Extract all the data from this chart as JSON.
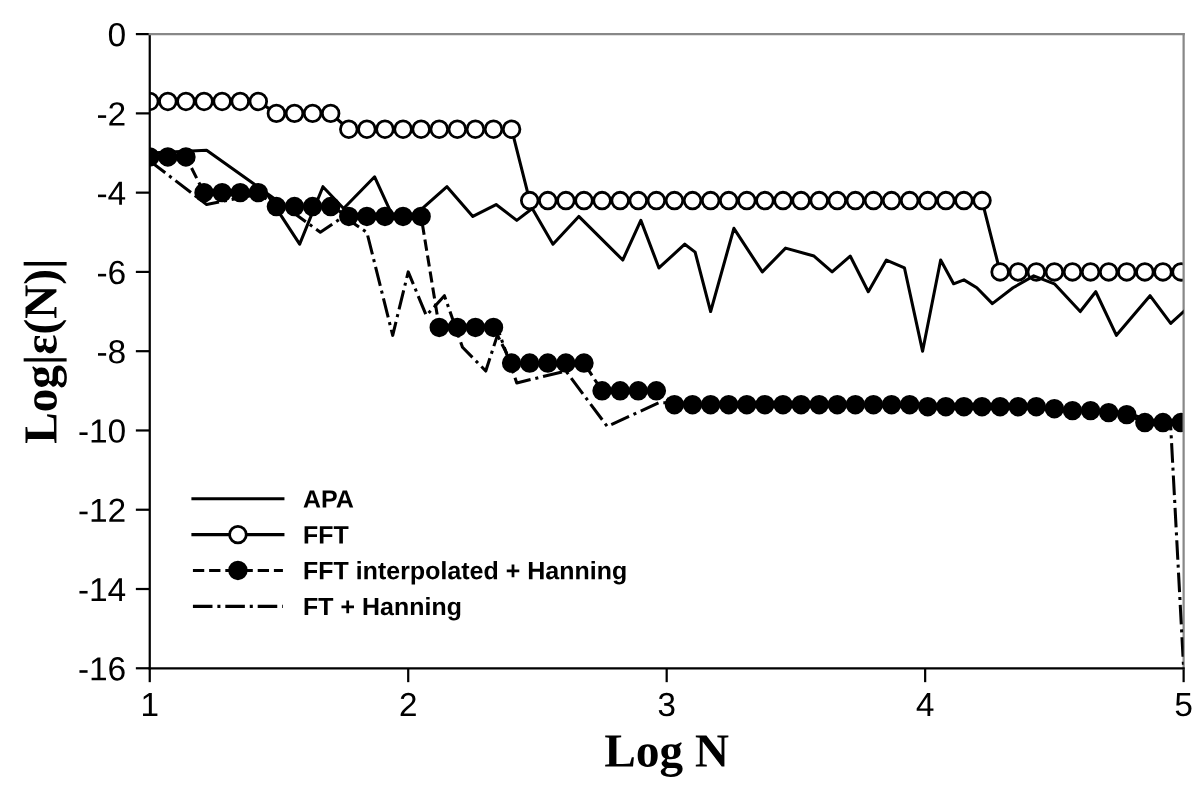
{
  "chart_data": {
    "type": "line",
    "xlabel": "Log N",
    "ylabel": "Log|ε(N)|",
    "xlim": [
      1,
      5
    ],
    "xticks": [
      1,
      2,
      3,
      4,
      5
    ],
    "ylim": [
      -16,
      0
    ],
    "yticks": [
      -16,
      -14,
      -12,
      -10,
      -8,
      -6,
      -4,
      -2,
      0
    ],
    "grid": false,
    "legend": "bottom left",
    "series": [
      {
        "name": "APA",
        "color": "#000000",
        "marker": "none",
        "line_style": "solid",
        "x": [
          1.0,
          1.22,
          1.45,
          1.58,
          1.67,
          1.75,
          1.87,
          1.94,
          2.02,
          2.15,
          2.25,
          2.34,
          2.42,
          2.48,
          2.56,
          2.66,
          2.83,
          2.9,
          2.97,
          3.07,
          3.11,
          3.17,
          3.26,
          3.37,
          3.46,
          3.57,
          3.64,
          3.71,
          3.78,
          3.85,
          3.92,
          3.99,
          4.06,
          4.11,
          4.15,
          4.2,
          4.26,
          4.34,
          4.42,
          4.5,
          4.6,
          4.66,
          4.74,
          4.87,
          4.95,
          5.0
        ],
        "values": [
          -3.0,
          -2.93,
          -4.0,
          -5.3,
          -3.85,
          -4.4,
          -3.6,
          -4.6,
          -4.6,
          -3.85,
          -4.6,
          -4.3,
          -4.7,
          -4.4,
          -5.3,
          -4.6,
          -5.7,
          -4.7,
          -5.9,
          -5.3,
          -5.5,
          -7.0,
          -4.9,
          -6.0,
          -5.4,
          -5.6,
          -6.0,
          -5.6,
          -6.5,
          -5.7,
          -5.9,
          -8.0,
          -5.7,
          -6.3,
          -6.2,
          -6.4,
          -6.8,
          -6.4,
          -6.1,
          -6.3,
          -7.0,
          -6.5,
          -7.6,
          -6.6,
          -7.3,
          -7.0
        ]
      },
      {
        "name": "FFT",
        "color": "#000000",
        "marker": "open circle",
        "line_style": "solid",
        "x": [
          1.0,
          1.07,
          1.14,
          1.21,
          1.28,
          1.35,
          1.42,
          1.49,
          1.56,
          1.63,
          1.7,
          1.77,
          1.84,
          1.91,
          1.98,
          2.05,
          2.12,
          2.19,
          2.26,
          2.33,
          2.4,
          2.47,
          2.54,
          2.61,
          2.68,
          2.75,
          2.82,
          2.89,
          2.96,
          3.03,
          3.1,
          3.17,
          3.24,
          3.31,
          3.38,
          3.45,
          3.52,
          3.59,
          3.66,
          3.73,
          3.8,
          3.87,
          3.94,
          4.01,
          4.08,
          4.15,
          4.22,
          4.29,
          4.36,
          4.43,
          4.5,
          4.57,
          4.64,
          4.71,
          4.78,
          4.85,
          4.92,
          4.99
        ],
        "values": [
          -1.7,
          -1.7,
          -1.7,
          -1.7,
          -1.7,
          -1.7,
          -1.7,
          -2.0,
          -2.0,
          -2.0,
          -2.0,
          -2.4,
          -2.4,
          -2.4,
          -2.4,
          -2.4,
          -2.4,
          -2.4,
          -2.4,
          -2.4,
          -2.4,
          -4.2,
          -4.2,
          -4.2,
          -4.2,
          -4.2,
          -4.2,
          -4.2,
          -4.2,
          -4.2,
          -4.2,
          -4.2,
          -4.2,
          -4.2,
          -4.2,
          -4.2,
          -4.2,
          -4.2,
          -4.2,
          -4.2,
          -4.2,
          -4.2,
          -4.2,
          -4.2,
          -4.2,
          -4.2,
          -4.2,
          -6.0,
          -6.0,
          -6.0,
          -6.0,
          -6.0,
          -6.0,
          -6.0,
          -6.0,
          -6.0,
          -6.0,
          -6.0
        ]
      },
      {
        "name": "FFT interpolated + Hanning",
        "color": "#000000",
        "marker": "circle",
        "line_style": "dashed",
        "x": [
          1.0,
          1.07,
          1.14,
          1.21,
          1.28,
          1.35,
          1.42,
          1.49,
          1.56,
          1.63,
          1.7,
          1.77,
          1.84,
          1.91,
          1.98,
          2.05,
          2.12,
          2.19,
          2.26,
          2.33,
          2.4,
          2.47,
          2.54,
          2.61,
          2.68,
          2.75,
          2.82,
          2.89,
          2.96,
          3.03,
          3.1,
          3.17,
          3.24,
          3.31,
          3.38,
          3.45,
          3.52,
          3.59,
          3.66,
          3.73,
          3.8,
          3.87,
          3.94,
          4.01,
          4.08,
          4.15,
          4.22,
          4.29,
          4.36,
          4.43,
          4.5,
          4.57,
          4.64,
          4.71,
          4.78,
          4.85,
          4.92,
          4.99
        ],
        "values": [
          -3.1,
          -3.1,
          -3.1,
          -4.0,
          -4.0,
          -4.0,
          -4.0,
          -4.35,
          -4.35,
          -4.35,
          -4.35,
          -4.6,
          -4.6,
          -4.6,
          -4.6,
          -4.6,
          -7.4,
          -7.4,
          -7.4,
          -7.4,
          -8.3,
          -8.3,
          -8.3,
          -8.3,
          -8.3,
          -9.0,
          -9.0,
          -9.0,
          -9.0,
          -9.35,
          -9.35,
          -9.35,
          -9.35,
          -9.35,
          -9.35,
          -9.35,
          -9.35,
          -9.35,
          -9.35,
          -9.35,
          -9.35,
          -9.35,
          -9.35,
          -9.4,
          -9.4,
          -9.4,
          -9.4,
          -9.4,
          -9.4,
          -9.4,
          -9.45,
          -9.5,
          -9.5,
          -9.55,
          -9.6,
          -9.8,
          -9.8,
          -9.8
        ]
      },
      {
        "name": "FT + Hanning",
        "color": "#000000",
        "marker": "none",
        "line_style": "dashdot",
        "x": [
          1.0,
          1.22,
          1.45,
          1.66,
          1.75,
          1.84,
          1.94,
          2.0,
          2.07,
          2.14,
          2.21,
          2.3,
          2.35,
          2.42,
          2.61,
          2.77,
          2.97,
          3.5,
          4.0,
          4.5,
          4.8,
          4.95,
          5.0
        ],
        "values": [
          -3.2,
          -4.3,
          -4.0,
          -5.0,
          -4.6,
          -5.0,
          -7.6,
          -6.0,
          -7.1,
          -6.6,
          -7.9,
          -8.5,
          -7.5,
          -8.8,
          -8.5,
          -9.9,
          -9.3,
          -9.35,
          -9.4,
          -9.45,
          -9.6,
          -9.9,
          -16.0
        ]
      }
    ]
  }
}
